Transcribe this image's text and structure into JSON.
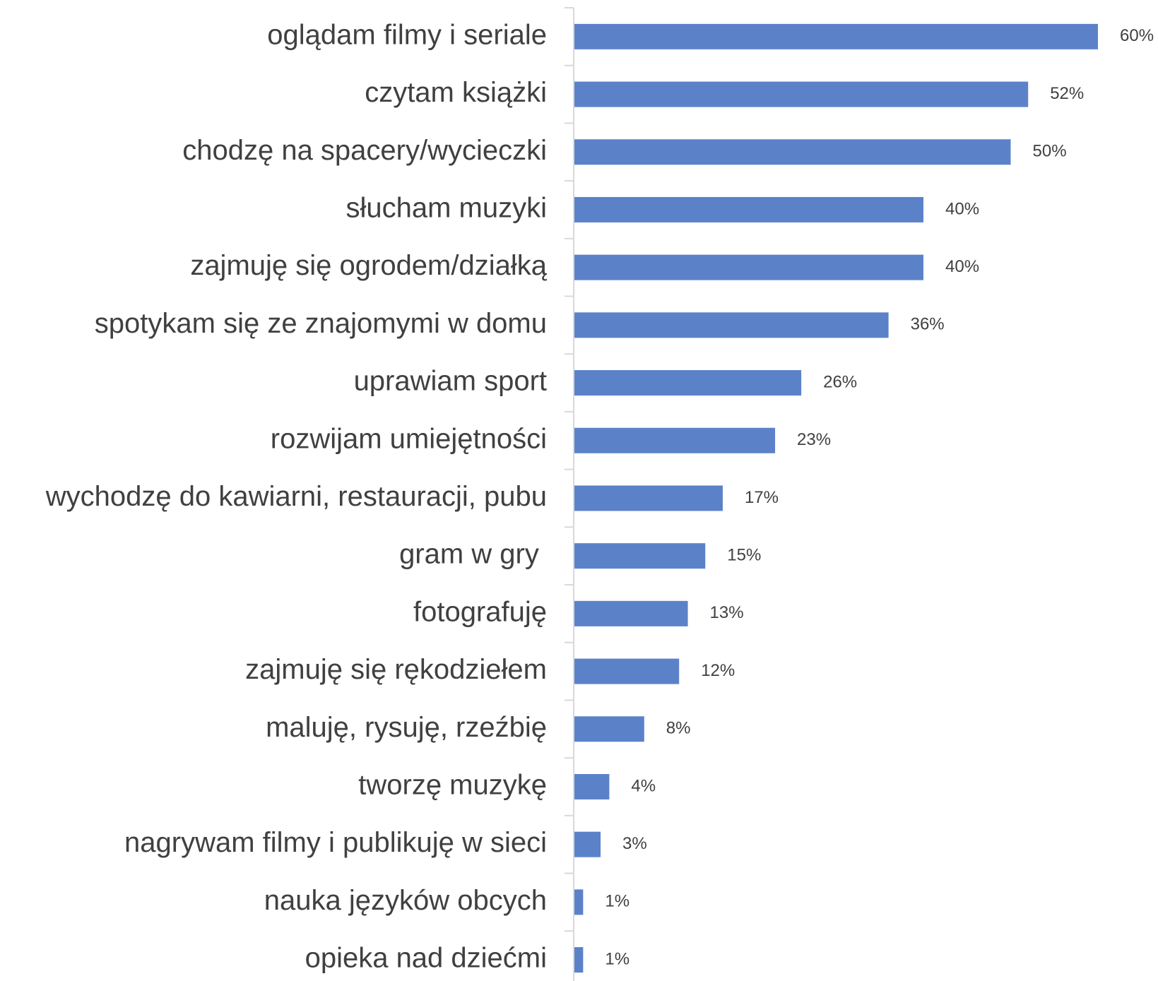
{
  "chart_data": {
    "type": "bar",
    "orientation": "horizontal",
    "color": "#5b82c9",
    "categories": [
      "oglądam filmy i seriale",
      "czytam książki",
      "chodzę na spacery/wycieczki",
      "słucham muzyki",
      "zajmuję się ogrodem/działką",
      "spotykam się ze znajomymi w domu",
      "uprawiam sport",
      "rozwijam umiejętności",
      "wychodzę do kawiarni, restauracji, pubu",
      "gram w gry ",
      "fotografuję",
      "zajmuję się rękodziełem",
      "maluję, rysuję, rzeźbię",
      "tworzę muzykę",
      "nagrywam filmy i publikuję w sieci",
      "nauka języków obcych",
      "opieka nad dziećmi"
    ],
    "values": [
      60,
      52,
      50,
      40,
      40,
      36,
      26,
      23,
      17,
      15,
      13,
      12,
      8,
      4,
      3,
      1,
      1
    ],
    "value_labels": [
      "60%",
      "52%",
      "50%",
      "40%",
      "40%",
      "36%",
      "26%",
      "23%",
      "17%",
      "15%",
      "13%",
      "12%",
      "8%",
      "4%",
      "3%",
      "1%",
      "1%"
    ]
  }
}
